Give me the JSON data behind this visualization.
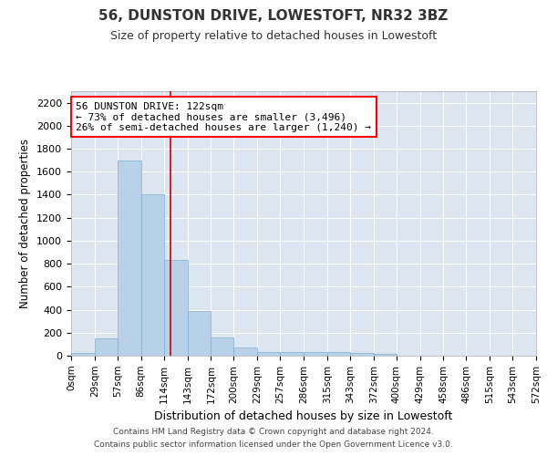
{
  "title": "56, DUNSTON DRIVE, LOWESTOFT, NR32 3BZ",
  "subtitle": "Size of property relative to detached houses in Lowestoft",
  "xlabel": "Distribution of detached houses by size in Lowestoft",
  "ylabel": "Number of detached properties",
  "bar_color": "#b8d0e8",
  "bar_edge_color": "#7aafd4",
  "background_color": "#dde6f0",
  "grid_color": "#ffffff",
  "annotation_text": "56 DUNSTON DRIVE: 122sqm\n← 73% of detached houses are smaller (3,496)\n26% of semi-detached houses are larger (1,240) →",
  "vline_x": 122,
  "vline_color": "#cc0000",
  "footer1": "Contains HM Land Registry data © Crown copyright and database right 2024.",
  "footer2": "Contains public sector information licensed under the Open Government Licence v3.0.",
  "ylim": [
    0,
    2300
  ],
  "yticks": [
    0,
    200,
    400,
    600,
    800,
    1000,
    1200,
    1400,
    1600,
    1800,
    2000,
    2200
  ],
  "bin_edges": [
    0,
    29,
    57,
    86,
    114,
    143,
    172,
    200,
    229,
    257,
    286,
    315,
    343,
    372,
    400,
    429,
    458,
    486,
    515,
    543,
    572
  ],
  "bar_heights": [
    20,
    150,
    1700,
    1400,
    830,
    390,
    160,
    70,
    35,
    30,
    30,
    30,
    20,
    15,
    0,
    0,
    0,
    0,
    0,
    0
  ],
  "tick_labels": [
    "0sqm",
    "29sqm",
    "57sqm",
    "86sqm",
    "114sqm",
    "143sqm",
    "172sqm",
    "200sqm",
    "229sqm",
    "257sqm",
    "286sqm",
    "315sqm",
    "343sqm",
    "372sqm",
    "400sqm",
    "429sqm",
    "458sqm",
    "486sqm",
    "515sqm",
    "543sqm",
    "572sqm"
  ]
}
